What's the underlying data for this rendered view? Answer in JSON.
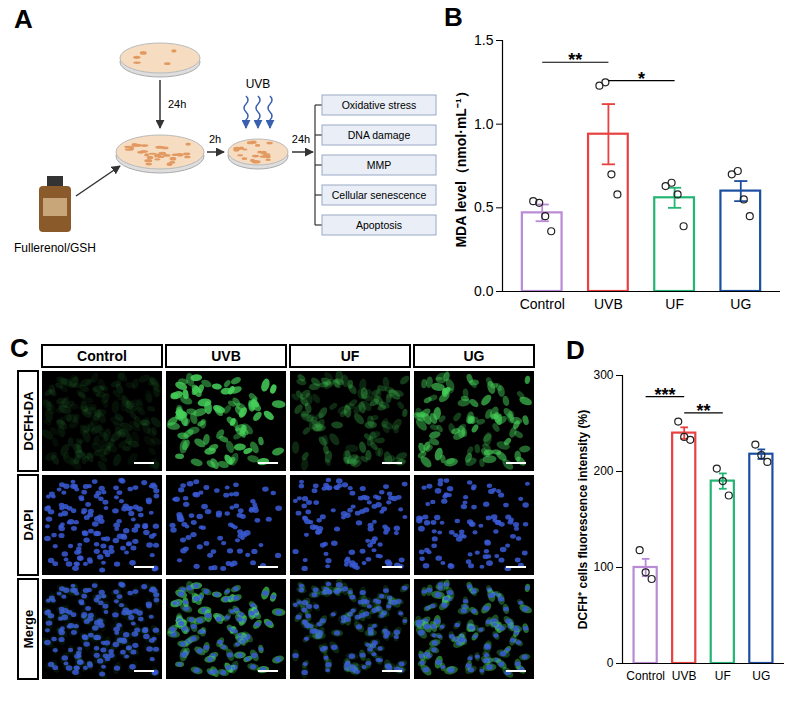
{
  "panel_a": {
    "letter": "A",
    "reagent": "Fullerenol/GSH",
    "steps": [
      "24h",
      "2h",
      "24h"
    ],
    "stimulus": "UVB",
    "outcomes": [
      "Oxidative stress",
      "DNA damage",
      "MMP",
      "Cellular senescence",
      "Apoptosis"
    ]
  },
  "chart_data": [
    {
      "panel": "B",
      "type": "bar",
      "categories": [
        "Control",
        "UVB",
        "UF",
        "UG"
      ],
      "values": [
        0.47,
        0.94,
        0.56,
        0.6
      ],
      "errors": [
        0.05,
        0.18,
        0.06,
        0.06
      ],
      "points": [
        [
          0.54,
          0.53,
          0.45,
          0.36
        ],
        [
          1.23,
          1.25,
          0.7,
          0.58
        ],
        [
          0.63,
          0.65,
          0.58,
          0.39
        ],
        [
          0.7,
          0.72,
          0.55,
          0.45
        ]
      ],
      "colors": [
        "#b98ad6",
        "#e8413f",
        "#22b573",
        "#1c4fa0"
      ],
      "ylabel": "MDA level（nmol·mL⁻¹）",
      "ylim": [
        0,
        1.5
      ],
      "yticks": [
        {
          "value": 0,
          "label": "0.0"
        },
        0.5,
        {
          "value": 1,
          "label": "1.0"
        },
        1.5
      ],
      "annotations": [
        {
          "from": "Control",
          "to": "UVB",
          "text": "**",
          "y": 1.37
        },
        {
          "from": "UVB",
          "to": "UF",
          "text": "*",
          "y": 1.26
        }
      ]
    },
    {
      "panel": "D",
      "type": "bar",
      "categories": [
        "Control",
        "UVB",
        "UF",
        "UG"
      ],
      "values": [
        100,
        240,
        190,
        218
      ],
      "errors": [
        9,
        6,
        8,
        5
      ],
      "points": [
        [
          118,
          95,
          88
        ],
        [
          252,
          236,
          233
        ],
        [
          203,
          190,
          175
        ],
        [
          228,
          217,
          210
        ]
      ],
      "colors": [
        "#b98ad6",
        "#e8413f",
        "#22b573",
        "#1c4fa0"
      ],
      "ylabel": "DCFH⁺ cells fluorescence intensity (%)",
      "ylim": [
        0,
        300
      ],
      "yticks": [
        0,
        100,
        200,
        300
      ],
      "annotations": [
        {
          "from": "Control",
          "to": "UVB",
          "text": "***",
          "y": 278
        },
        {
          "from": "UVB",
          "to": "UF",
          "text": "**",
          "y": 261
        }
      ]
    }
  ],
  "panel_c": {
    "letter": "C",
    "columns": [
      "Control",
      "UVB",
      "UF",
      "UG"
    ],
    "rows": [
      "DCFH-DA",
      "DAPI",
      "Merge"
    ]
  }
}
